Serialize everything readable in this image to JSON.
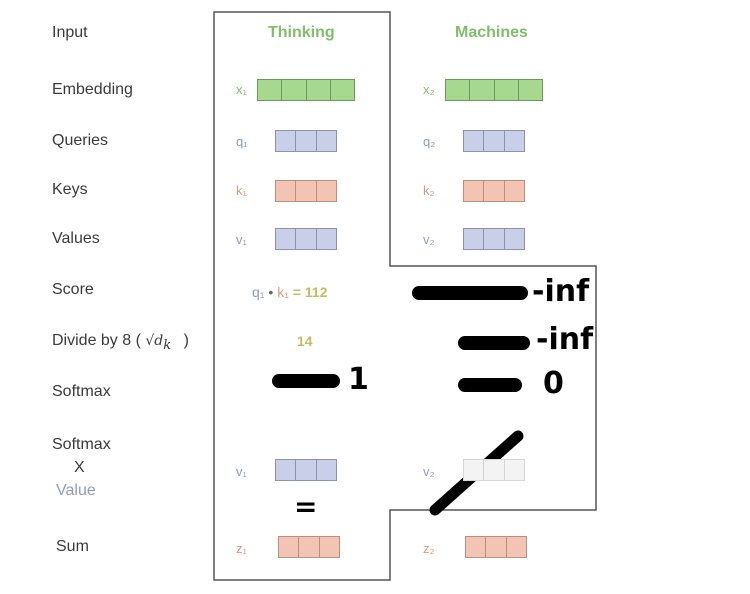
{
  "rows": {
    "input": "Input",
    "embedding": "Embedding",
    "queries": "Queries",
    "keys": "Keys",
    "values": "Values",
    "score": "Score",
    "divide_prefix": "Divide by 8 (",
    "divide_sqrt": "√d",
    "divide_sub": "k",
    "divide_suffix": ")",
    "softmax": "Softmax",
    "softmax_x_1": "Softmax",
    "softmax_x_2": "X",
    "softmax_x_3": "Value",
    "sum": "Sum"
  },
  "words": {
    "w1": "Thinking",
    "w2": "Machines"
  },
  "vectors": {
    "x1": "x₁",
    "x2": "x₂",
    "q1": "q₁",
    "q2": "q₂",
    "k1": "k₁",
    "k2": "k₂",
    "v1": "v₁",
    "v2": "v₂",
    "v1b": "v₁",
    "v2b": "v₂",
    "z1": "z₁",
    "z2": "z₂"
  },
  "score": {
    "q": "q₁",
    "dot": "•",
    "k": "k₁",
    "eq": "= 112"
  },
  "divide_value": "14",
  "annotations": {
    "score2": "-inf",
    "divide2": "-inf",
    "softmax1": "1",
    "softmax2": "0",
    "equals": "="
  },
  "colors": {
    "green": "#7fbf6a",
    "blue": "#8f9ac4",
    "pink": "#d99a84",
    "gold": "#c8b860"
  }
}
